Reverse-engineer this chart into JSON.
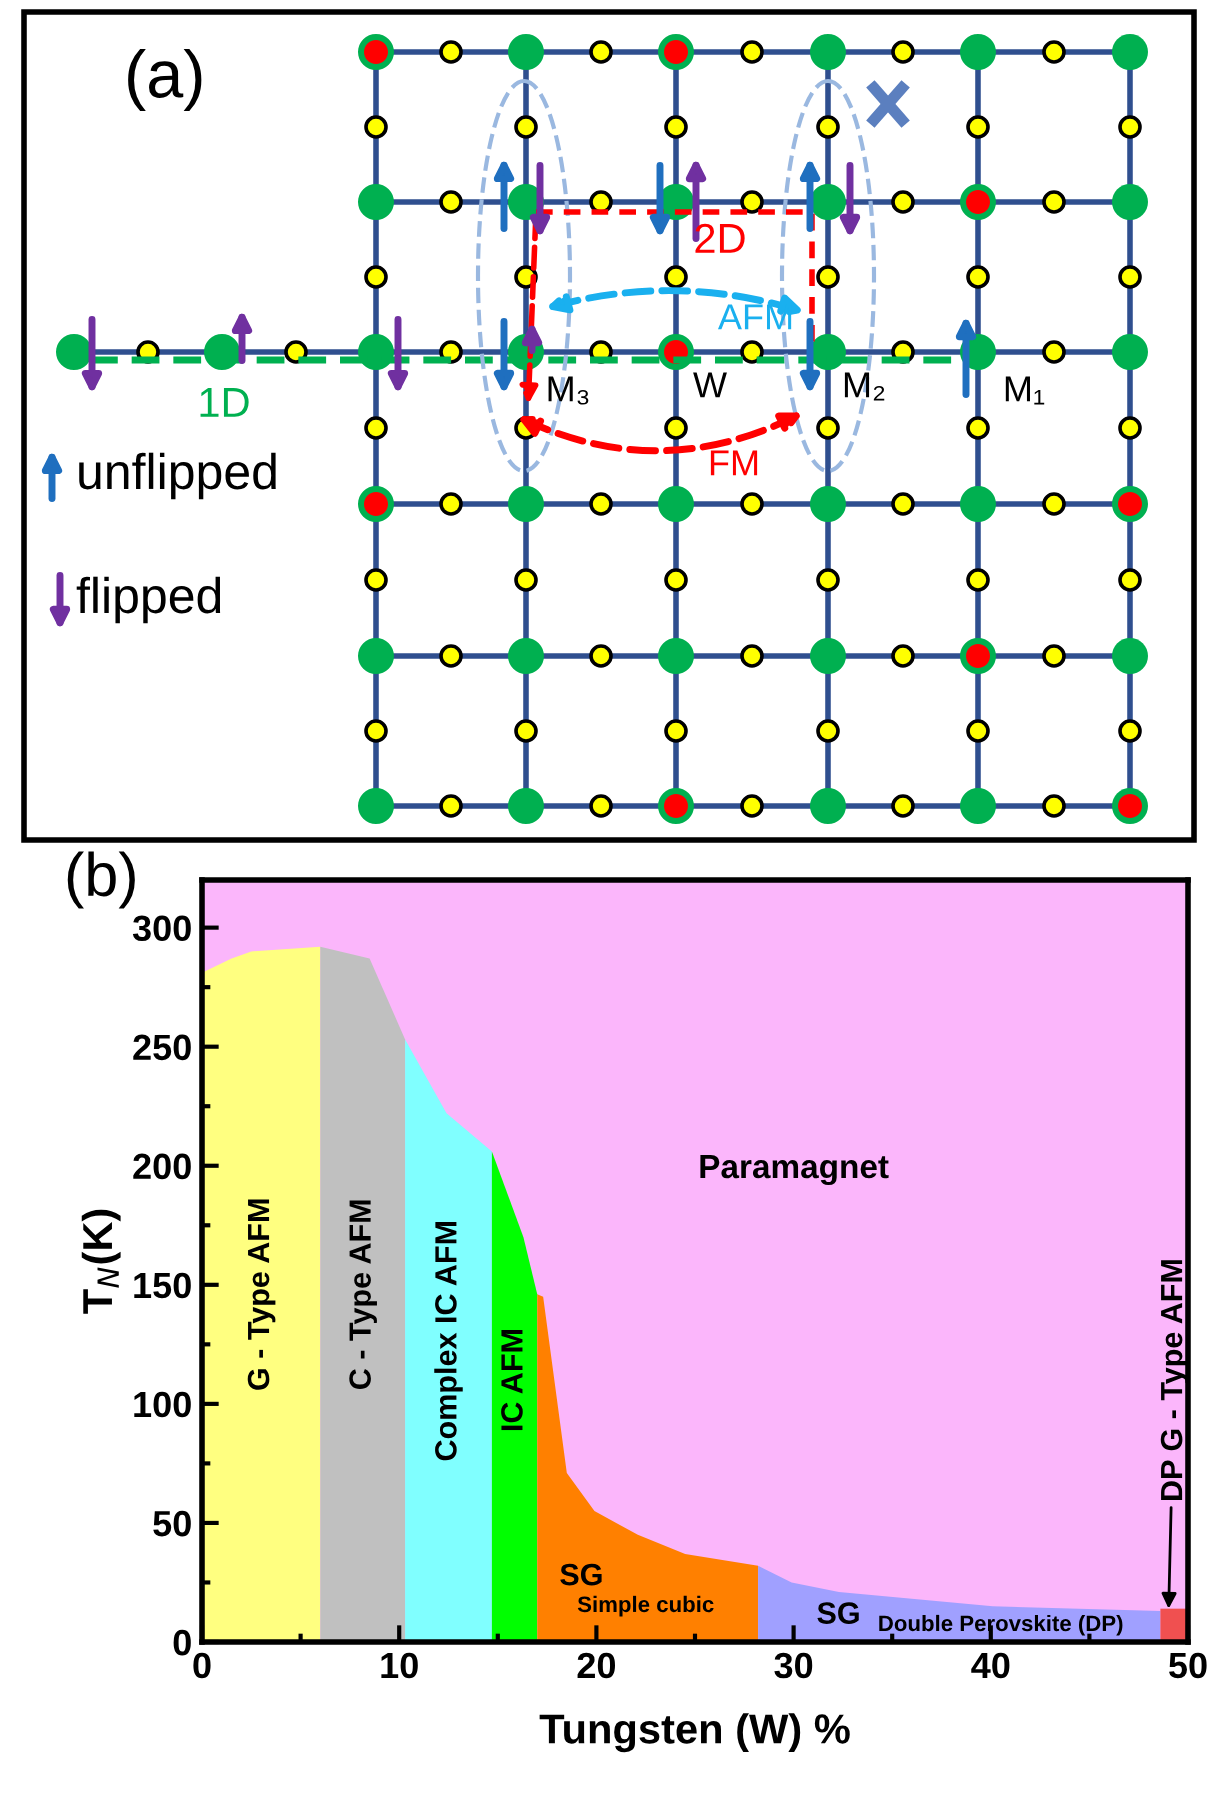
{
  "chart_data": [
    {
      "type": "other",
      "title": "(a)",
      "annotations": [
        "1D",
        "2D",
        "AFM",
        "FM",
        "M₃",
        "W",
        "M₂",
        "M₁",
        "unflipped",
        "flipped"
      ]
    },
    {
      "type": "area",
      "title": "(b)",
      "xlabel": "Tungsten (W) %",
      "ylabel": "T$_{N}$(K)",
      "xlim": [
        0,
        50
      ],
      "ylim": [
        0,
        320
      ],
      "xticks": [
        0,
        10,
        20,
        30,
        40,
        50
      ],
      "yticks": [
        0,
        50,
        100,
        150,
        200,
        250,
        300
      ],
      "series": [
        {
          "name": "G - Type AFM",
          "color": "#ffff80",
          "x": [
            0,
            1.5,
            2.5,
            6.0
          ],
          "values": [
            281,
            287,
            290,
            292
          ]
        },
        {
          "name": "C - Type AFM",
          "color": "#c0c0c0",
          "x": [
            6.0,
            8.5,
            10.3
          ],
          "values": [
            292,
            287,
            253
          ]
        },
        {
          "name": "Complex IC AFM",
          "color": "#80ffff",
          "x": [
            10.3,
            12.4,
            14.7
          ],
          "values": [
            253,
            222,
            206
          ]
        },
        {
          "name": "IC AFM",
          "color": "#00ff00",
          "x": [
            14.7,
            16.3,
            17.0
          ],
          "values": [
            206,
            170,
            146
          ]
        },
        {
          "name": "SG",
          "color": "#ff8000",
          "x": [
            17.0,
            17.3,
            18.5,
            19.9,
            22.1,
            24.5,
            28.2
          ],
          "values": [
            146,
            145,
            71,
            55,
            45,
            37,
            32
          ]
        },
        {
          "name": "SG",
          "color": "#a0a0ff",
          "x": [
            28.2,
            29.9,
            32.3,
            40.1,
            48.6
          ],
          "values": [
            32,
            25,
            21,
            15,
            13
          ]
        },
        {
          "name": "DP G - Type AFM",
          "color": "#f05050",
          "x": [
            48.6,
            50
          ],
          "values": [
            14,
            14
          ]
        }
      ],
      "bands": [
        {
          "axis": "y",
          "from": 0,
          "to": 320,
          "label": "Paramagnet",
          "color": "#fbb6fb"
        }
      ],
      "annotations": [
        "Simple cubic",
        "Double Perovskite (DP)"
      ]
    }
  ]
}
